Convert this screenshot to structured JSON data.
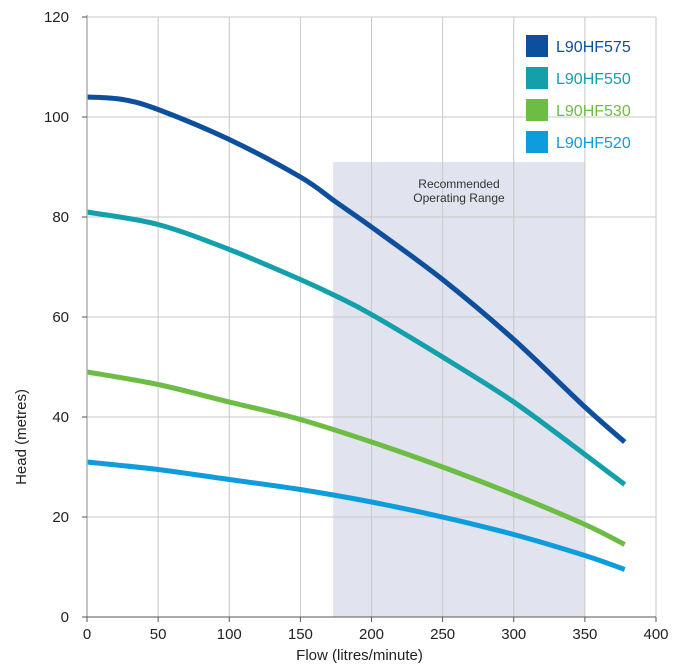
{
  "chart_data": {
    "type": "line",
    "xlabel": "Flow (litres/minute)",
    "ylabel": "Head (metres)",
    "xlim": [
      0,
      400
    ],
    "ylim": [
      0,
      120
    ],
    "x_ticks": [
      "0",
      "50",
      "100",
      "150",
      "200",
      "250",
      "300",
      "350",
      "400"
    ],
    "y_ticks": [
      "0",
      "20",
      "40",
      "60",
      "80",
      "100",
      "120"
    ],
    "grid": true,
    "legend_position": "top-right",
    "recommended_range": {
      "x_start": 173,
      "x_end": 350,
      "y_top": 91,
      "label_line1": "Recommended",
      "label_line2": "Operating Range",
      "color": "#e1e3ef"
    },
    "series": [
      {
        "name": "L90HF575",
        "color": "#0d4f9c",
        "points": [
          [
            0,
            104
          ],
          [
            25,
            103.5
          ],
          [
            50,
            101.5
          ],
          [
            100,
            95.5
          ],
          [
            150,
            88
          ],
          [
            175,
            83
          ],
          [
            200,
            78
          ],
          [
            250,
            67.5
          ],
          [
            300,
            55.5
          ],
          [
            350,
            42
          ],
          [
            378,
            35
          ]
        ]
      },
      {
        "name": "L90HF550",
        "color": "#13a0aa",
        "points": [
          [
            0,
            81
          ],
          [
            50,
            78.5
          ],
          [
            100,
            73.5
          ],
          [
            150,
            67.5
          ],
          [
            175,
            64.2
          ],
          [
            200,
            60.5
          ],
          [
            250,
            52
          ],
          [
            300,
            43
          ],
          [
            350,
            32.5
          ],
          [
            378,
            26.5
          ]
        ]
      },
      {
        "name": "L90HF530",
        "color": "#6dbd45",
        "points": [
          [
            0,
            49
          ],
          [
            50,
            46.5
          ],
          [
            100,
            43
          ],
          [
            150,
            39.5
          ],
          [
            200,
            35
          ],
          [
            250,
            30
          ],
          [
            300,
            24.5
          ],
          [
            350,
            18.5
          ],
          [
            378,
            14.5
          ]
        ]
      },
      {
        "name": "L90HF520",
        "color": "#0e9ddc",
        "points": [
          [
            0,
            31
          ],
          [
            50,
            29.5
          ],
          [
            100,
            27.5
          ],
          [
            150,
            25.5
          ],
          [
            200,
            23
          ],
          [
            250,
            20
          ],
          [
            300,
            16.5
          ],
          [
            350,
            12.3
          ],
          [
            378,
            9.5
          ]
        ]
      }
    ]
  }
}
